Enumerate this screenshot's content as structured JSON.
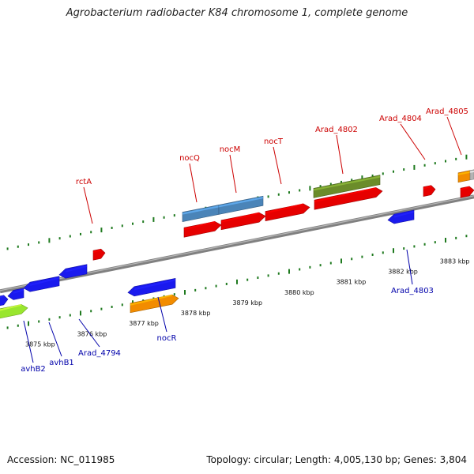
{
  "title": "Agrobacterium radiobacter K84 chromosome 1, complete genome",
  "footer": {
    "accession": "Accession: NC_011985",
    "summary": "Topology: circular; Length: 4,005,130 bp; Genes: 3,804"
  },
  "axis_ticks": [
    {
      "label": "3875 kbp",
      "kbp": 3875
    },
    {
      "label": "3876 kbp",
      "kbp": 3876
    },
    {
      "label": "3877 kbp",
      "kbp": 3877
    },
    {
      "label": "3878 kbp",
      "kbp": 3878
    },
    {
      "label": "3879 kbp",
      "kbp": 3879
    },
    {
      "label": "3880 kbp",
      "kbp": 3880
    },
    {
      "label": "3881 kbp",
      "kbp": 3881
    },
    {
      "label": "3882 kbp",
      "kbp": 3882
    },
    {
      "label": "3883 kbp",
      "kbp": 3883
    }
  ],
  "colors": {
    "backbone": "#808080",
    "tick_mark": "#1f7a1f",
    "label_forward": "#cc0000",
    "label_reverse": "#0000aa",
    "red": "#e60000",
    "blue": "#1a1aee",
    "steelblue": "#4a84b8",
    "olive": "#6b8c2a",
    "orange": "#f28c00",
    "lime": "#99e62e",
    "grey": "#b4b4b4"
  },
  "gene_labels": {
    "forward": [
      "rctA",
      "nocQ",
      "nocM",
      "nocT",
      "Arad_4802",
      "Arad_4804",
      "Arad_4805"
    ],
    "reverse": [
      "avhB2",
      "avhB1",
      "Arad_4794",
      "nocR",
      "Arad_4803"
    ]
  }
}
